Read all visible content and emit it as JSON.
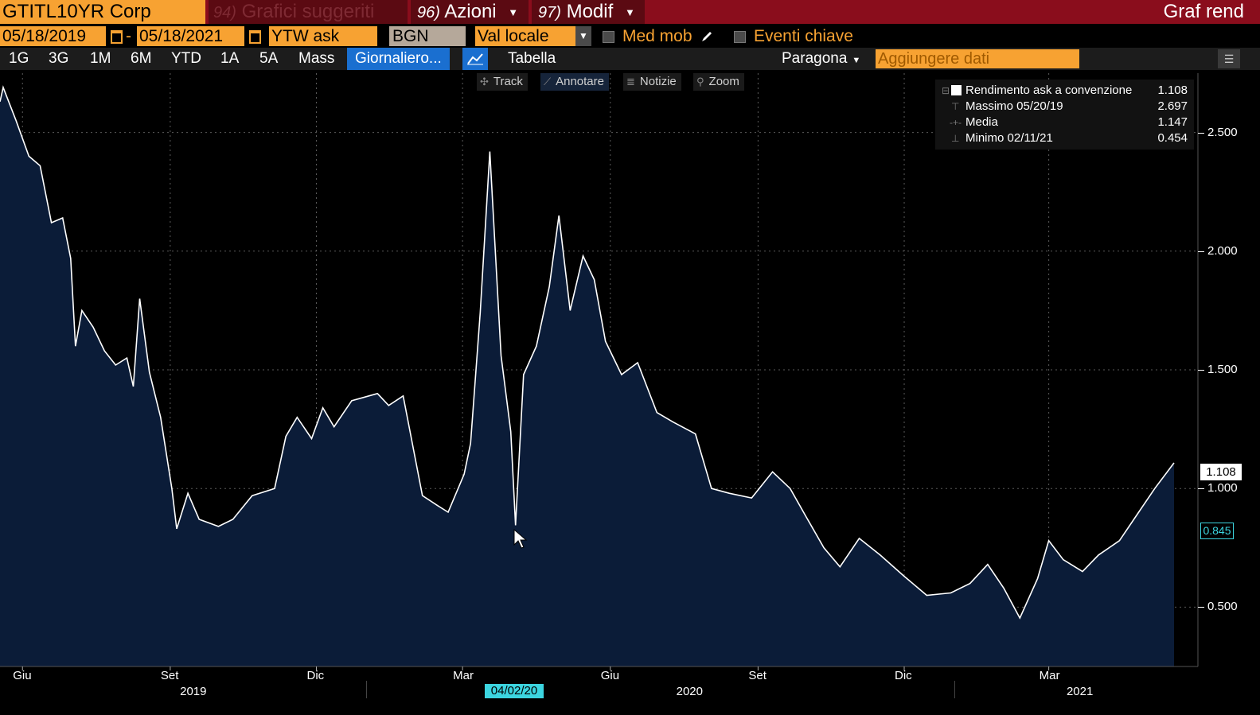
{
  "header": {
    "ticker": "GTITL10YR Corp",
    "suggested_num": "94)",
    "suggested_label": "Grafici suggeriti",
    "actions_num": "96)",
    "actions_label": "Azioni",
    "modify_num": "97)",
    "modify_label": "Modif",
    "title": "Graf rend"
  },
  "controls": {
    "start_date": "05/18/2019",
    "date_sep": "-",
    "end_date": "05/18/2021",
    "field": "YTW ask",
    "source": "BGN",
    "currency": "Val locale",
    "moving_avg_label": "Med mob",
    "key_events_label": "Eventi chiave"
  },
  "toolbar": {
    "ranges": [
      "1G",
      "3G",
      "1M",
      "6M",
      "YTD",
      "1A",
      "5A",
      "Mass"
    ],
    "frequency": "Giornaliero...",
    "table_label": "Tabella",
    "compare_label": "Paragona",
    "add_data_placeholder": "Aggiungere dati"
  },
  "tools": {
    "track": "Track",
    "annotate": "Annotare",
    "news": "Notizie",
    "zoom": "Zoom"
  },
  "legend": {
    "series_name": "Rendimento ask a convenzione",
    "series_value": "1.108",
    "max_label": "Massimo 05/20/19",
    "max_value": "2.697",
    "avg_label": "Media",
    "avg_value": "1.147",
    "min_label": "Minimo 02/11/21",
    "min_value": "0.454"
  },
  "markers": {
    "last_value": "1.108",
    "cursor_value": "0.845",
    "cursor_date": "04/02/20"
  },
  "colors": {
    "accent_orange": "#f7a232",
    "header_red": "#8a0d1c",
    "area_fill": "#0b1c38",
    "line": "#ffffff",
    "cursor_cyan": "#3cd5e0"
  },
  "chart_data": {
    "type": "area",
    "series": [
      {
        "name": "Rendimento ask a convenzione",
        "points": [
          [
            "2019-05-18",
            2.63
          ],
          [
            "2019-05-20",
            2.69
          ],
          [
            "2019-05-28",
            2.55
          ],
          [
            "2019-06-05",
            2.4
          ],
          [
            "2019-06-12",
            2.36
          ],
          [
            "2019-06-19",
            2.12
          ],
          [
            "2019-06-26",
            2.14
          ],
          [
            "2019-07-01",
            1.97
          ],
          [
            "2019-07-04",
            1.6
          ],
          [
            "2019-07-08",
            1.75
          ],
          [
            "2019-07-15",
            1.68
          ],
          [
            "2019-07-22",
            1.58
          ],
          [
            "2019-07-29",
            1.52
          ],
          [
            "2019-08-05",
            1.55
          ],
          [
            "2019-08-09",
            1.43
          ],
          [
            "2019-08-13",
            1.8
          ],
          [
            "2019-08-19",
            1.49
          ],
          [
            "2019-08-26",
            1.3
          ],
          [
            "2019-09-02",
            1.0
          ],
          [
            "2019-09-05",
            0.83
          ],
          [
            "2019-09-12",
            0.98
          ],
          [
            "2019-09-19",
            0.87
          ],
          [
            "2019-10-01",
            0.84
          ],
          [
            "2019-10-10",
            0.87
          ],
          [
            "2019-10-22",
            0.97
          ],
          [
            "2019-11-05",
            1.0
          ],
          [
            "2019-11-12",
            1.22
          ],
          [
            "2019-11-19",
            1.3
          ],
          [
            "2019-11-28",
            1.21
          ],
          [
            "2019-12-05",
            1.34
          ],
          [
            "2019-12-12",
            1.26
          ],
          [
            "2019-12-23",
            1.37
          ],
          [
            "2020-01-08",
            1.4
          ],
          [
            "2020-01-15",
            1.35
          ],
          [
            "2020-01-24",
            1.39
          ],
          [
            "2020-02-05",
            0.97
          ],
          [
            "2020-02-14",
            0.93
          ],
          [
            "2020-02-21",
            0.9
          ],
          [
            "2020-03-02",
            1.06
          ],
          [
            "2020-03-06",
            1.19
          ],
          [
            "2020-03-12",
            1.74
          ],
          [
            "2020-03-18",
            2.42
          ],
          [
            "2020-03-25",
            1.56
          ],
          [
            "2020-03-31",
            1.24
          ],
          [
            "2020-04-03",
            0.845
          ],
          [
            "2020-04-08",
            1.48
          ],
          [
            "2020-04-16",
            1.6
          ],
          [
            "2020-04-24",
            1.85
          ],
          [
            "2020-04-30",
            2.15
          ],
          [
            "2020-05-07",
            1.75
          ],
          [
            "2020-05-15",
            1.98
          ],
          [
            "2020-05-22",
            1.88
          ],
          [
            "2020-05-29",
            1.62
          ],
          [
            "2020-06-08",
            1.48
          ],
          [
            "2020-06-18",
            1.53
          ],
          [
            "2020-06-30",
            1.32
          ],
          [
            "2020-07-10",
            1.28
          ],
          [
            "2020-07-24",
            1.23
          ],
          [
            "2020-08-03",
            1.0
          ],
          [
            "2020-08-14",
            0.98
          ],
          [
            "2020-08-28",
            0.96
          ],
          [
            "2020-09-10",
            1.07
          ],
          [
            "2020-09-21",
            1.0
          ],
          [
            "2020-10-01",
            0.88
          ],
          [
            "2020-10-12",
            0.75
          ],
          [
            "2020-10-22",
            0.67
          ],
          [
            "2020-11-03",
            0.79
          ],
          [
            "2020-11-16",
            0.72
          ],
          [
            "2020-12-01",
            0.63
          ],
          [
            "2020-12-15",
            0.55
          ],
          [
            "2020-12-30",
            0.56
          ],
          [
            "2021-01-11",
            0.6
          ],
          [
            "2021-01-22",
            0.68
          ],
          [
            "2021-02-01",
            0.58
          ],
          [
            "2021-02-11",
            0.454
          ],
          [
            "2021-02-22",
            0.62
          ],
          [
            "2021-03-01",
            0.78
          ],
          [
            "2021-03-10",
            0.7
          ],
          [
            "2021-03-22",
            0.65
          ],
          [
            "2021-04-01",
            0.72
          ],
          [
            "2021-04-14",
            0.78
          ],
          [
            "2021-04-26",
            0.9
          ],
          [
            "2021-05-06",
            1.0
          ],
          [
            "2021-05-18",
            1.108
          ]
        ]
      }
    ],
    "x_axis": {
      "type": "date",
      "range": [
        "2019-05-18",
        "2021-05-18"
      ],
      "month_ticks": [
        {
          "label": "Giu",
          "date": "2019-06-01"
        },
        {
          "label": "Set",
          "date": "2019-09-01"
        },
        {
          "label": "Dic",
          "date": "2019-12-01"
        },
        {
          "label": "Mar",
          "date": "2020-03-01"
        },
        {
          "label": "Giu",
          "date": "2020-06-01"
        },
        {
          "label": "Set",
          "date": "2020-09-01"
        },
        {
          "label": "Dic",
          "date": "2020-12-01"
        },
        {
          "label": "Mar",
          "date": "2021-03-01"
        }
      ],
      "years": [
        {
          "label": "2019",
          "date": "2019-09-15"
        },
        {
          "label": "2020",
          "date": "2020-07-20"
        },
        {
          "label": "2021",
          "date": "2021-03-20"
        }
      ]
    },
    "y_axis": {
      "ticks": [
        "0.500",
        "1.000",
        "1.500",
        "2.000",
        "2.500"
      ],
      "tick_values": [
        0.5,
        1.0,
        1.5,
        2.0,
        2.5
      ],
      "range": [
        0.25,
        2.75
      ],
      "position": "right"
    },
    "grid": true,
    "legend_position": "top-right"
  }
}
